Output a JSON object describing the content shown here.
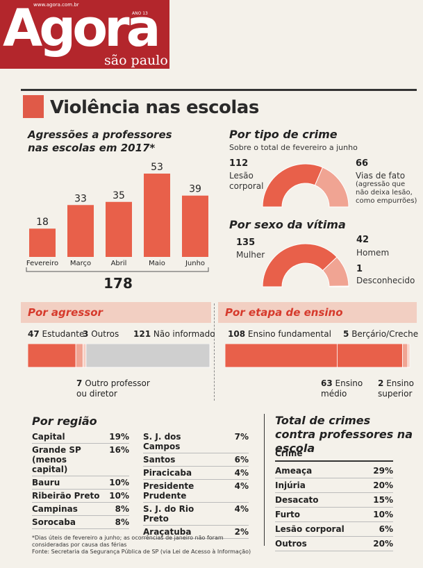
{
  "masthead": {
    "url": "www.agora.com.br",
    "year": "ANO 13",
    "logo": "Agora",
    "subtitle": "são paulo"
  },
  "title": "Violência nas escolas",
  "colors": {
    "accent": "#e05a48",
    "bar": "#e8604a",
    "band": "#f2cfc2",
    "light": "#f0a493"
  },
  "chart_data": [
    {
      "type": "bar",
      "title": "Agressões a professores nas escolas em 2017*",
      "categories": [
        "Fevereiro",
        "Março",
        "Abril",
        "Maio",
        "Junho"
      ],
      "values": [
        18,
        33,
        35,
        53,
        39
      ],
      "total": "178",
      "ylim": [
        0,
        53
      ]
    },
    {
      "type": "pie",
      "title": "Por tipo de crime",
      "subtitle": "Sobre o total de fevereiro a junho",
      "series": [
        {
          "name": "Lesão corporal",
          "value": 112,
          "label": "112",
          "text": "Lesão\ncorporal"
        },
        {
          "name": "Vias de fato",
          "value": 66,
          "label": "66",
          "text": "Vias de fato",
          "note": "(agressão que não deixa lesão, como empurrões)"
        }
      ]
    },
    {
      "type": "pie",
      "title": "Por sexo da vítima",
      "series": [
        {
          "name": "Mulher",
          "value": 135,
          "label": "135"
        },
        {
          "name": "Homem",
          "value": 42,
          "label": "42"
        },
        {
          "name": "Desconhecido",
          "value": 1,
          "label": "1"
        }
      ]
    },
    {
      "type": "bar",
      "title": "Por agressor",
      "series": [
        {
          "name": "Estudante",
          "value": 47
        },
        {
          "name": "Outro professor ou diretor",
          "value": 7
        },
        {
          "name": "Outros",
          "value": 3
        },
        {
          "name": "Não informado",
          "value": 121
        }
      ]
    },
    {
      "type": "bar",
      "title": "Por etapa de ensino",
      "series": [
        {
          "name": "Ensino fundamental",
          "value": 108
        },
        {
          "name": "Ensino médio",
          "value": 63
        },
        {
          "name": "Berçário/Creche",
          "value": 5
        },
        {
          "name": "Ensino superior",
          "value": 2
        }
      ]
    },
    {
      "type": "table",
      "title": "Por região",
      "columns": [
        [
          {
            "name": "Capital",
            "value": "19%"
          },
          {
            "name": "Grande SP (menos capital)",
            "value": "16%"
          },
          {
            "name": "Bauru",
            "value": "10%"
          },
          {
            "name": "Ribeirão Preto",
            "value": "10%"
          },
          {
            "name": "Campinas",
            "value": "8%"
          },
          {
            "name": "Sorocaba",
            "value": "8%"
          }
        ],
        [
          {
            "name": "S. J. dos Campos",
            "value": "7%"
          },
          {
            "name": "Santos",
            "value": "6%"
          },
          {
            "name": "Piracicaba",
            "value": "4%"
          },
          {
            "name": "Presidente Prudente",
            "value": "4%"
          },
          {
            "name": "S. J. do Rio Preto",
            "value": "4%"
          },
          {
            "name": "Araçatuba",
            "value": "2%"
          }
        ]
      ]
    },
    {
      "type": "table",
      "title": "Total de crimes contra professores na escola",
      "header": "Crime",
      "rows": [
        {
          "name": "Ameaça",
          "value": "29%"
        },
        {
          "name": "Injúria",
          "value": "20%"
        },
        {
          "name": "Desacato",
          "value": "15%"
        },
        {
          "name": "Furto",
          "value": "10%"
        },
        {
          "name": "Lesão corporal",
          "value": "6%"
        },
        {
          "name": "Outros",
          "value": "20%"
        }
      ]
    }
  ],
  "footnote": "*Dias úteis de fevereiro a junho; as ocorrências de janeiro não foram consideradas por causa das férias",
  "source": "Fonte: Secretaria da Segurança Pública de SP (via Lei de Acesso à Informação)"
}
